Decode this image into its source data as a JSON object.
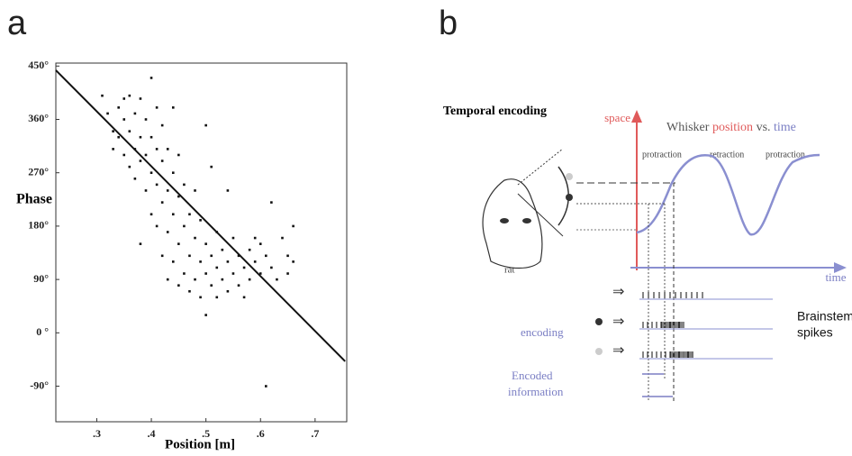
{
  "panel_labels": [
    "a",
    "b"
  ],
  "chart_data": {
    "type": "scatter",
    "x_label": "Position [m]",
    "y_label": "Phase",
    "xlim": [
      0.225,
      0.758
    ],
    "ylim": [
      -150,
      455
    ],
    "xticks": [
      {
        "value": 0.3,
        "label": ".3"
      },
      {
        "value": 0.4,
        "label": ".4"
      },
      {
        "value": 0.5,
        "label": ".5"
      },
      {
        "value": 0.6,
        "label": ".6"
      },
      {
        "value": 0.7,
        "label": ".7"
      }
    ],
    "yticks": [
      {
        "value": -90,
        "label": "-90°"
      },
      {
        "value": 0,
        "label": "0 °"
      },
      {
        "value": 90,
        "label": "90°"
      },
      {
        "value": 180,
        "label": "180°"
      },
      {
        "value": 270,
        "label": "270°"
      },
      {
        "value": 360,
        "label": "360°"
      },
      {
        "value": 450,
        "label": "450°"
      }
    ],
    "color": "#111111",
    "x": [
      0.31,
      0.32,
      0.33,
      0.33,
      0.34,
      0.34,
      0.35,
      0.35,
      0.35,
      0.36,
      0.36,
      0.36,
      0.37,
      0.37,
      0.37,
      0.38,
      0.38,
      0.38,
      0.38,
      0.39,
      0.39,
      0.39,
      0.4,
      0.4,
      0.4,
      0.4,
      0.41,
      0.41,
      0.41,
      0.41,
      0.42,
      0.42,
      0.42,
      0.42,
      0.43,
      0.43,
      0.43,
      0.43,
      0.44,
      0.44,
      0.44,
      0.44,
      0.45,
      0.45,
      0.45,
      0.45,
      0.46,
      0.46,
      0.46,
      0.47,
      0.47,
      0.47,
      0.48,
      0.48,
      0.48,
      0.49,
      0.49,
      0.49,
      0.5,
      0.5,
      0.5,
      0.5,
      0.51,
      0.51,
      0.51,
      0.52,
      0.52,
      0.52,
      0.53,
      0.53,
      0.54,
      0.54,
      0.54,
      0.55,
      0.55,
      0.56,
      0.56,
      0.57,
      0.57,
      0.58,
      0.58,
      0.59,
      0.59,
      0.6,
      0.6,
      0.61,
      0.61,
      0.62,
      0.62,
      0.63,
      0.64,
      0.65,
      0.65,
      0.66,
      0.66
    ],
    "values": [
      400,
      370,
      340,
      310,
      380,
      330,
      300,
      360,
      395,
      280,
      340,
      400,
      310,
      260,
      370,
      150,
      290,
      330,
      395,
      240,
      300,
      360,
      200,
      270,
      330,
      430,
      180,
      250,
      310,
      380,
      130,
      220,
      290,
      350,
      90,
      170,
      240,
      310,
      120,
      200,
      270,
      380,
      80,
      150,
      230,
      300,
      100,
      180,
      250,
      70,
      130,
      200,
      90,
      160,
      240,
      60,
      120,
      190,
      30,
      100,
      150,
      350,
      80,
      130,
      280,
      60,
      110,
      170,
      90,
      140,
      70,
      120,
      240,
      100,
      160,
      80,
      130,
      110,
      60,
      90,
      140,
      120,
      160,
      100,
      150,
      130,
      -90,
      110,
      220,
      90,
      160,
      130,
      100,
      180,
      120
    ],
    "fit_line": {
      "x": [
        0.225,
        0.755
      ],
      "y": [
        443,
        -48
      ]
    }
  },
  "diagram": {
    "title": "Temporal encoding",
    "space_axis": "space",
    "curve_title": [
      "Whisker",
      "position",
      "vs.",
      "time"
    ],
    "phases": [
      "protraction",
      "retraction",
      "protraction"
    ],
    "animal": "rat",
    "time_axis": "time",
    "arrow_symbol": "⇒",
    "encoding": "encoding",
    "encoded_info": [
      "Encoded",
      "information"
    ],
    "spikes": [
      "Brainstem",
      "spikes"
    ]
  }
}
